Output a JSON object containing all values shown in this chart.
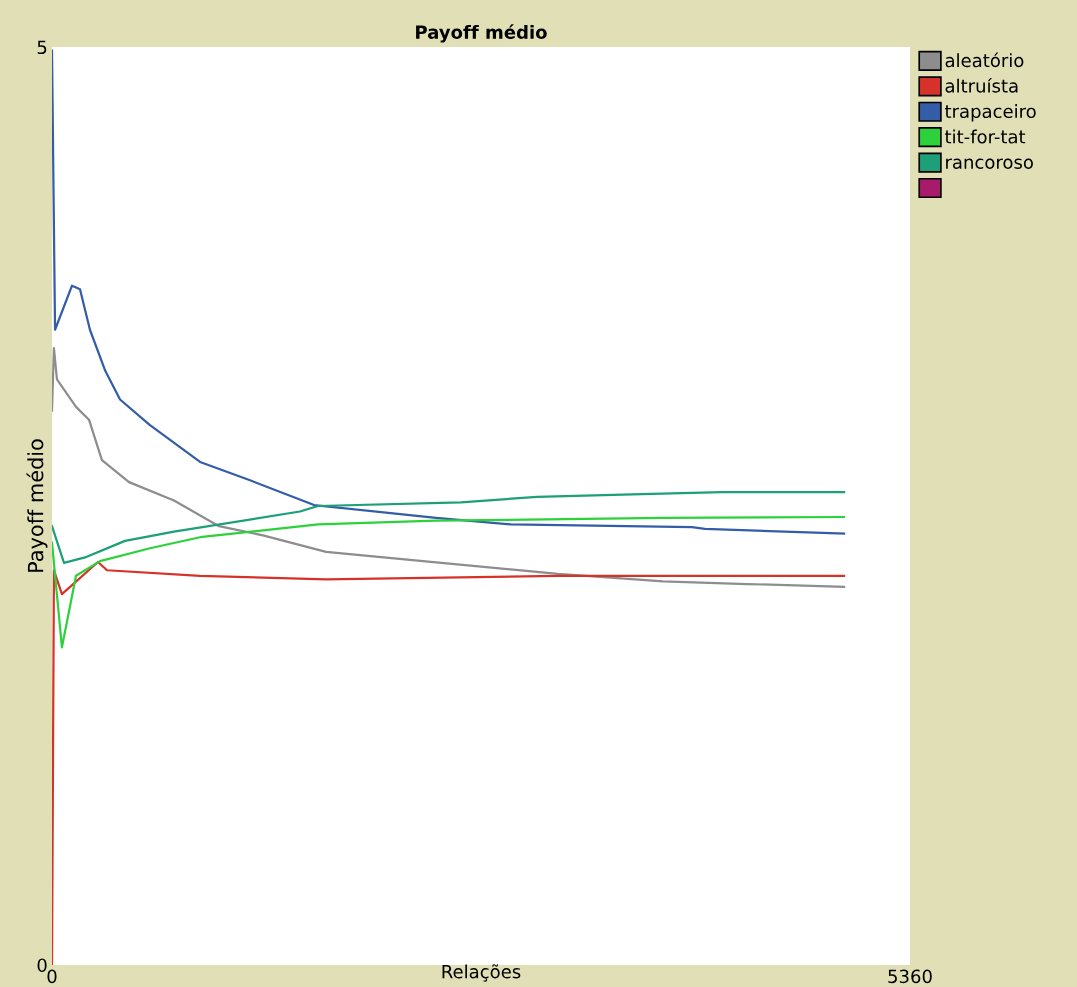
{
  "chart_data": {
    "type": "line",
    "title": "Payoff médio",
    "xlabel": "Relações",
    "ylabel": "Payoff médio",
    "xlim": [
      0,
      5360
    ],
    "ylim": [
      0,
      5
    ],
    "xticks": [
      0,
      5360
    ],
    "yticks": [
      0,
      5
    ],
    "grid": false,
    "legend": "top right",
    "marker": "none",
    "line_style": "solid",
    "series": [
      {
        "name": "aleatório",
        "color": "#8d8d8d",
        "x": [
          0,
          12,
          31,
          150,
          231,
          312,
          481,
          762,
          1043,
          1318,
          1712,
          2318,
          3161,
          3817,
          4342,
          4948
        ],
        "values": [
          3.02,
          3.36,
          3.19,
          3.04,
          2.97,
          2.75,
          2.63,
          2.53,
          2.39,
          2.34,
          2.25,
          2.2,
          2.13,
          2.09,
          2.075,
          2.06
        ]
      },
      {
        "name": "altruísta",
        "color": "#d73229",
        "x": [
          0,
          12,
          62,
          287,
          344,
          925,
          1712,
          3161,
          4948
        ],
        "values": [
          0,
          2.15,
          2.02,
          2.195,
          2.15,
          2.12,
          2.1,
          2.12,
          2.12
        ]
      },
      {
        "name": "trapaceiro",
        "color": "#345da7",
        "x": [
          0,
          19,
          125,
          175,
          237,
          331,
          425,
          612,
          925,
          1237,
          1637,
          2399,
          2867,
          3998,
          4079,
          4948
        ],
        "values": [
          4.98,
          3.46,
          3.7,
          3.68,
          3.46,
          3.24,
          3.08,
          2.94,
          2.74,
          2.64,
          2.505,
          2.435,
          2.4,
          2.385,
          2.375,
          2.35
        ]
      },
      {
        "name": "tit-for-tat",
        "color": "#2cd13b",
        "x": [
          0,
          62,
          150,
          300,
          612,
          925,
          1662,
          2399,
          3817,
          4948
        ],
        "values": [
          2.3,
          1.73,
          2.12,
          2.2,
          2.27,
          2.33,
          2.4,
          2.42,
          2.435,
          2.44
        ]
      },
      {
        "name": "rancoroso",
        "color": "#1d9f78",
        "x": [
          0,
          75,
          206,
          456,
          762,
          1549,
          1662,
          2555,
          3030,
          3686,
          4185,
          4948
        ],
        "values": [
          2.39,
          2.19,
          2.22,
          2.31,
          2.36,
          2.47,
          2.5,
          2.52,
          2.55,
          2.565,
          2.576,
          2.576
        ]
      },
      {
        "color": "#a71b6a"
      }
    ]
  }
}
